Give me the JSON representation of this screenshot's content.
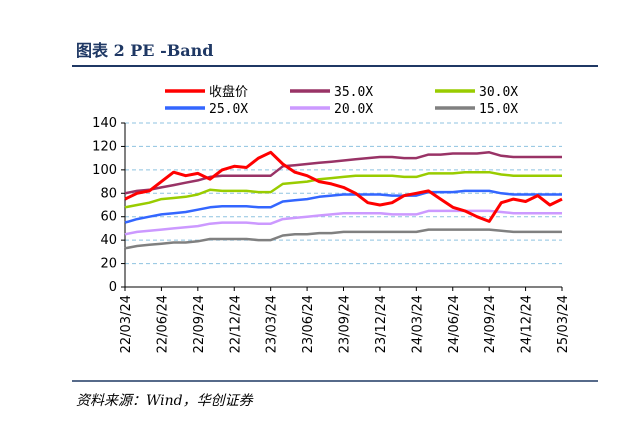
{
  "chart_data": {
    "type": "line",
    "title": "图表 2 PE -Band",
    "source": "资料来源：Wind，华创证券",
    "x": [
      "22/03/24",
      null,
      null,
      "22/06/24",
      null,
      null,
      "22/09/24",
      null,
      null,
      "22/12/24",
      null,
      null,
      "23/03/24",
      null,
      null,
      "23/06/24",
      null,
      null,
      "23/09/24",
      null,
      null,
      "23/12/24",
      null,
      null,
      "24/03/24",
      null,
      null,
      "24/06/24",
      null,
      null,
      "24/09/24",
      null,
      null,
      "24/12/24",
      null,
      null,
      "25/03/24"
    ],
    "ylim": [
      0,
      140
    ],
    "yticks": [
      0,
      20,
      40,
      60,
      80,
      100,
      120,
      140
    ],
    "grid": true,
    "series": [
      {
        "name": "收盘价",
        "color": "#ff0000",
        "values": [
          75,
          80,
          82,
          90,
          98,
          95,
          97,
          92,
          100,
          103,
          102,
          110,
          115,
          105,
          98,
          95,
          90,
          88,
          85,
          80,
          72,
          70,
          72,
          78,
          80,
          82,
          75,
          68,
          65,
          60,
          56,
          72,
          75,
          73,
          78,
          70,
          75
        ]
      },
      {
        "name": "35.0X",
        "color": "#993366",
        "values": [
          80,
          82,
          83,
          85,
          87,
          89,
          91,
          94,
          95,
          95,
          95,
          95,
          95,
          103,
          104,
          105,
          106,
          107,
          108,
          109,
          110,
          111,
          111,
          110,
          110,
          113,
          113,
          114,
          114,
          114,
          115,
          112,
          111,
          111,
          111,
          111,
          111
        ]
      },
      {
        "name": "30.0X",
        "color": "#99cc00",
        "values": [
          68,
          70,
          72,
          75,
          76,
          77,
          79,
          83,
          82,
          82,
          82,
          81,
          81,
          88,
          89,
          90,
          92,
          93,
          94,
          95,
          95,
          95,
          95,
          94,
          94,
          97,
          97,
          97,
          98,
          98,
          98,
          96,
          95,
          95,
          95,
          95,
          95
        ]
      },
      {
        "name": "25.0X",
        "color": "#3366ff",
        "values": [
          55,
          58,
          60,
          62,
          63,
          64,
          66,
          68,
          69,
          69,
          69,
          68,
          68,
          73,
          74,
          75,
          77,
          78,
          79,
          79,
          79,
          79,
          78,
          78,
          78,
          81,
          81,
          81,
          82,
          82,
          82,
          80,
          79,
          79,
          79,
          79,
          79
        ]
      },
      {
        "name": "20.0X",
        "color": "#cc99ff",
        "values": [
          45,
          47,
          48,
          49,
          50,
          51,
          52,
          54,
          55,
          55,
          55,
          54,
          54,
          58,
          59,
          60,
          61,
          62,
          63,
          63,
          63,
          63,
          62,
          62,
          62,
          65,
          65,
          65,
          65,
          65,
          65,
          64,
          63,
          63,
          63,
          63,
          63
        ]
      },
      {
        "name": "15.0X",
        "color": "#808080",
        "values": [
          33,
          35,
          36,
          37,
          38,
          38,
          39,
          41,
          41,
          41,
          41,
          40,
          40,
          44,
          45,
          45,
          46,
          46,
          47,
          47,
          47,
          47,
          47,
          47,
          47,
          49,
          49,
          49,
          49,
          49,
          49,
          48,
          47,
          47,
          47,
          47,
          47
        ]
      }
    ]
  }
}
